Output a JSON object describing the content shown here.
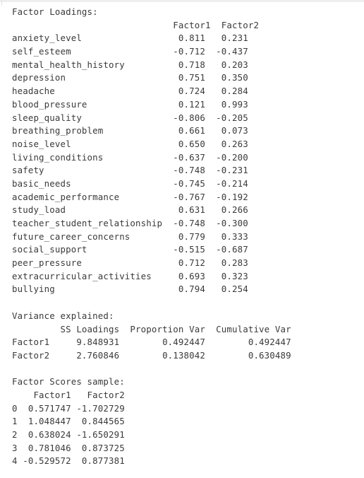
{
  "output": {
    "loadings_title": "Factor Loadings:",
    "loadings_columns": [
      "Factor1",
      "Factor2"
    ],
    "loadings": [
      {
        "variable": "anxiety_level",
        "f1": "0.811",
        "f2": "0.231"
      },
      {
        "variable": "self_esteem",
        "f1": "-0.712",
        "f2": "-0.437"
      },
      {
        "variable": "mental_health_history",
        "f1": "0.718",
        "f2": "0.203"
      },
      {
        "variable": "depression",
        "f1": "0.751",
        "f2": "0.350"
      },
      {
        "variable": "headache",
        "f1": "0.724",
        "f2": "0.284"
      },
      {
        "variable": "blood_pressure",
        "f1": "0.121",
        "f2": "0.993"
      },
      {
        "variable": "sleep_quality",
        "f1": "-0.806",
        "f2": "-0.205"
      },
      {
        "variable": "breathing_problem",
        "f1": "0.661",
        "f2": "0.073"
      },
      {
        "variable": "noise_level",
        "f1": "0.650",
        "f2": "0.263"
      },
      {
        "variable": "living_conditions",
        "f1": "-0.637",
        "f2": "-0.200"
      },
      {
        "variable": "safety",
        "f1": "-0.748",
        "f2": "-0.231"
      },
      {
        "variable": "basic_needs",
        "f1": "-0.745",
        "f2": "-0.214"
      },
      {
        "variable": "academic_performance",
        "f1": "-0.767",
        "f2": "-0.192"
      },
      {
        "variable": "study_load",
        "f1": "0.631",
        "f2": "0.266"
      },
      {
        "variable": "teacher_student_relationship",
        "f1": "-0.748",
        "f2": "-0.300"
      },
      {
        "variable": "future_career_concerns",
        "f1": "0.779",
        "f2": "0.333"
      },
      {
        "variable": "social_support",
        "f1": "-0.515",
        "f2": "-0.687"
      },
      {
        "variable": "peer_pressure",
        "f1": "0.712",
        "f2": "0.283"
      },
      {
        "variable": "extracurricular_activities",
        "f1": "0.693",
        "f2": "0.323"
      },
      {
        "variable": "bullying",
        "f1": "0.794",
        "f2": "0.254"
      }
    ],
    "variance_title": "Variance explained:",
    "variance_columns": [
      "SS Loadings",
      "Proportion Var",
      "Cumulative Var"
    ],
    "variance": [
      {
        "factor": "Factor1",
        "ss": "9.848931",
        "prop": "0.492447",
        "cum": "0.492447"
      },
      {
        "factor": "Factor2",
        "ss": "2.760846",
        "prop": "0.138042",
        "cum": "0.630489"
      }
    ],
    "scores_title": "Factor Scores sample:",
    "scores_columns": [
      "Factor1",
      "Factor2"
    ],
    "scores": [
      {
        "index": "0",
        "f1": "0.571747",
        "f2": "-1.702729"
      },
      {
        "index": "1",
        "f1": "1.048447",
        "f2": "0.844565"
      },
      {
        "index": "2",
        "f1": "0.638024",
        "f2": "-1.650291"
      },
      {
        "index": "3",
        "f1": "0.781046",
        "f2": "0.873725"
      },
      {
        "index": "4",
        "f1": "-0.529572",
        "f2": "0.877381"
      }
    ]
  }
}
